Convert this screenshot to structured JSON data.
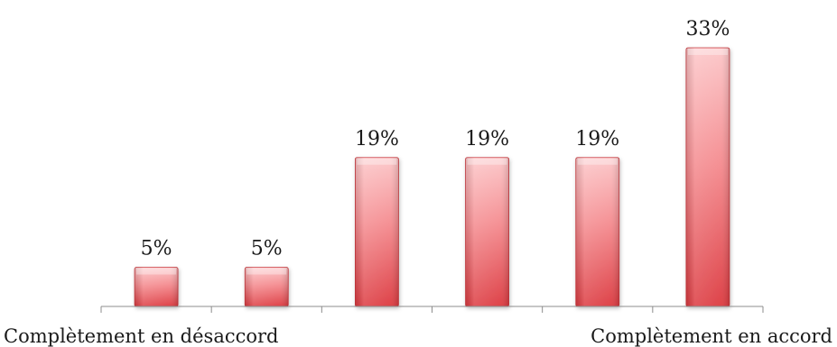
{
  "chart_data": {
    "type": "bar",
    "categories": [
      "Complètement en désaccord",
      "",
      "",
      "",
      "",
      "Complètement en accord"
    ],
    "values": [
      5,
      5,
      19,
      19,
      19,
      33
    ],
    "data_labels": [
      "5%",
      "5%",
      "19%",
      "19%",
      "19%",
      "33%"
    ],
    "title": "",
    "xlabel": "",
    "ylabel": "",
    "ylim": [
      0,
      33
    ],
    "grid": false,
    "legend": "none",
    "bar_color": "#e8494f",
    "bar_highlight": "#fcc0c2"
  }
}
